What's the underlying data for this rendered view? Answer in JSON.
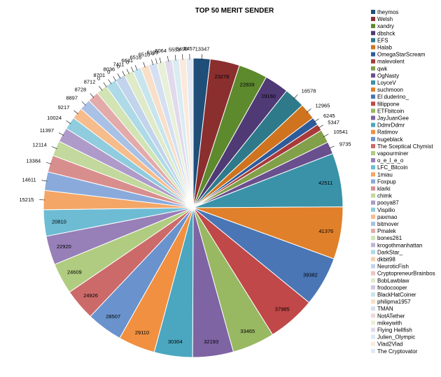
{
  "chart_data": {
    "type": "pie",
    "title": "TOP 50 MERIT SENDER",
    "legend_position": "right",
    "categories": [
      "theymos",
      "Welsh",
      "xandry",
      "dbshck",
      "EFS",
      "Halab",
      "OmegaStarScream",
      "malevolent",
      "qwk",
      "OgNasty",
      "LoyceV",
      "suchmoon",
      "El duderino_",
      "fillippone",
      "ETFbitcoin",
      "JayJuanGee",
      "DdmrDdmr",
      "Ratimov",
      "hugeblack",
      "The Sceptical Chymist",
      "vapourminer",
      "o_e_l_e_o",
      "LFC_Bitcoin",
      "1miau",
      "Foxpup",
      "klarki",
      "chimk",
      "pooya87",
      "Vispilio",
      "paxmao",
      "bitmover",
      "Pmalek",
      "bones261",
      "krogothmanhattan",
      "DarkStar_",
      "dkbit98",
      "NeuroticFish",
      "CryptopreneurBrainbos",
      "BobLawblaw",
      "frodocooper",
      "BlackHatCoiner",
      "philipma1957",
      "TMAN",
      "NotATether",
      "mikeywith",
      "Flying Hellfish",
      "Julien_Olympic",
      "Vlad2Vlad",
      "The Cryptovator"
    ],
    "values": [
      13347,
      23278,
      22839,
      19160,
      16578,
      12965,
      6245,
      5347,
      10541,
      9735,
      42511,
      41376,
      39382,
      37985,
      33465,
      32193,
      30304,
      29110,
      28507,
      24926,
      24609,
      22920,
      20810,
      15215,
      14611,
      13384,
      12114,
      11397,
      10024,
      9217,
      8897,
      8728,
      8712,
      0,
      8701,
      0,
      8036,
      0,
      7411,
      0,
      6631,
      6516,
      6510,
      0,
      6139,
      6064,
      5553,
      5490,
      5457
    ],
    "colors": [
      "#1F4E79",
      "#8B2E2E",
      "#5E8A2E",
      "#4F3A75",
      "#2E7A8A",
      "#D0731E",
      "#2E5B9A",
      "#A83A3A",
      "#82A04A",
      "#6A4F8E",
      "#3A92A8",
      "#E0802A",
      "#4A76B5",
      "#C04848",
      "#98B862",
      "#7E64A3",
      "#4BA7BF",
      "#F09040",
      "#6A92CC",
      "#CC6A6A",
      "#B0CC80",
      "#977FB8",
      "#6DBCD3",
      "#F4A666",
      "#8AAADB",
      "#D98E8E",
      "#C2D89C",
      "#AE9BC9",
      "#8FCCDD",
      "#F6BC8C",
      "#A9C1E5",
      "#E3AAAA",
      "#D2E3B4",
      "#C2B3D7",
      "#AEDAE7",
      "#F8CFAE",
      "#C2D3EC",
      "#EBC4C4",
      "#DFEAC8",
      "#D3C8E3",
      "#C7E5EE",
      "#F9DEC8",
      "#D4E0F2",
      "#F1D7D7",
      "#E8F0D8",
      "#E1DAEC",
      "#D9ECF2",
      "#FBE9DB",
      "#E2EAF6"
    ]
  }
}
